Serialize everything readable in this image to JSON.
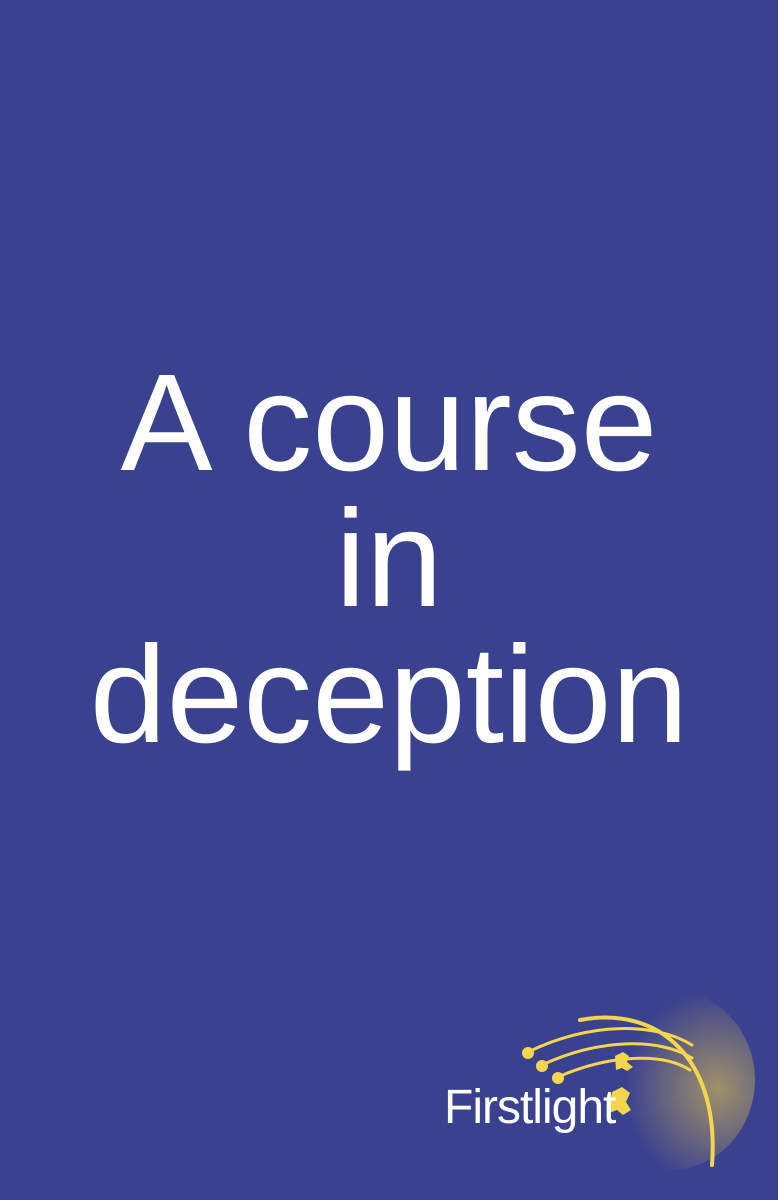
{
  "cover": {
    "title_lines": [
      "A course",
      "in",
      "deception"
    ],
    "background_color": "#3a418f",
    "text_color": "#ffffff"
  },
  "logo": {
    "wordmark": "Firstlight",
    "icon": "shooting-star-rays-icon",
    "accent_color": "#f2d24a"
  }
}
